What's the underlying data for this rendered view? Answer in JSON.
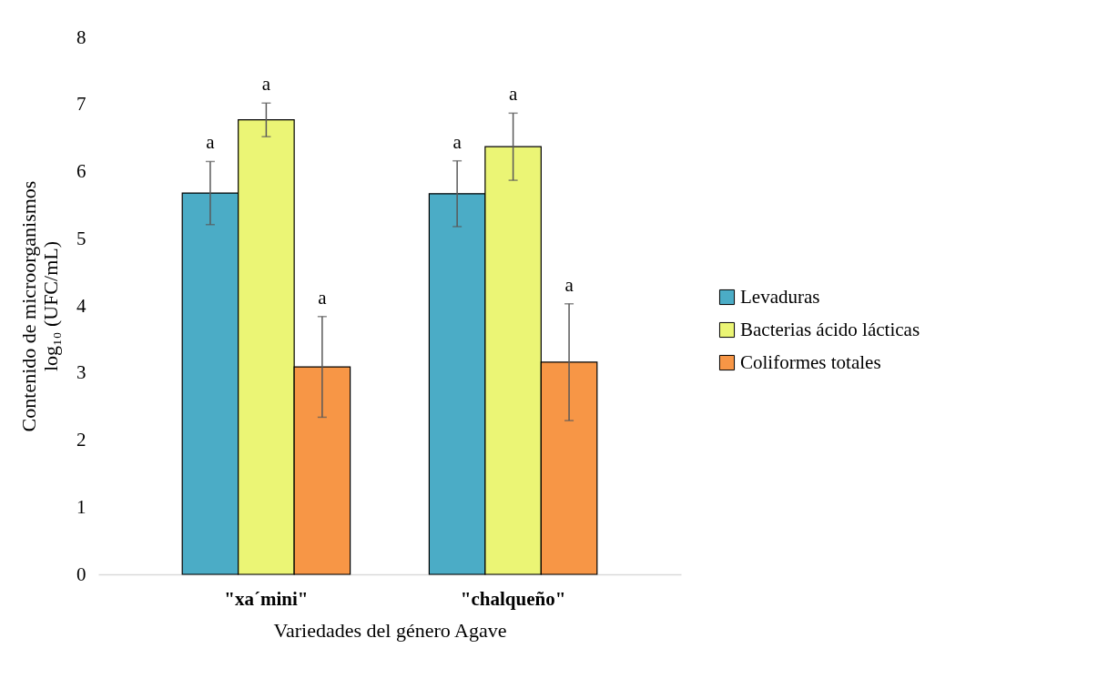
{
  "chart_data": {
    "type": "bar",
    "xlabel": "Variedades del género Agave",
    "ylabel": "Contenido de microorganismos\nlog₁₀ (UFC/mL)",
    "categories": [
      "\"xa´mini\"",
      "\"chalqueño\""
    ],
    "series": [
      {
        "name": "Levaduras",
        "color": "#4bacc6",
        "values": [
          5.68,
          5.67
        ],
        "errors": [
          0.47,
          0.49
        ]
      },
      {
        "name": "Bacterias ácido lácticas",
        "color": "#ebf575",
        "values": [
          6.77,
          6.37
        ],
        "errors": [
          0.25,
          0.5
        ]
      },
      {
        "name": "Coliformes totales",
        "color": "#f79646",
        "values": [
          3.09,
          3.16
        ],
        "errors": [
          0.75,
          0.87
        ]
      }
    ],
    "ylim": [
      0,
      8
    ],
    "yticks": [
      0,
      1,
      2,
      3,
      4,
      5,
      6,
      7,
      8
    ],
    "grid": false,
    "legend": "right",
    "annotations": [
      "a",
      "a",
      "a",
      "a",
      "a",
      "a"
    ]
  }
}
